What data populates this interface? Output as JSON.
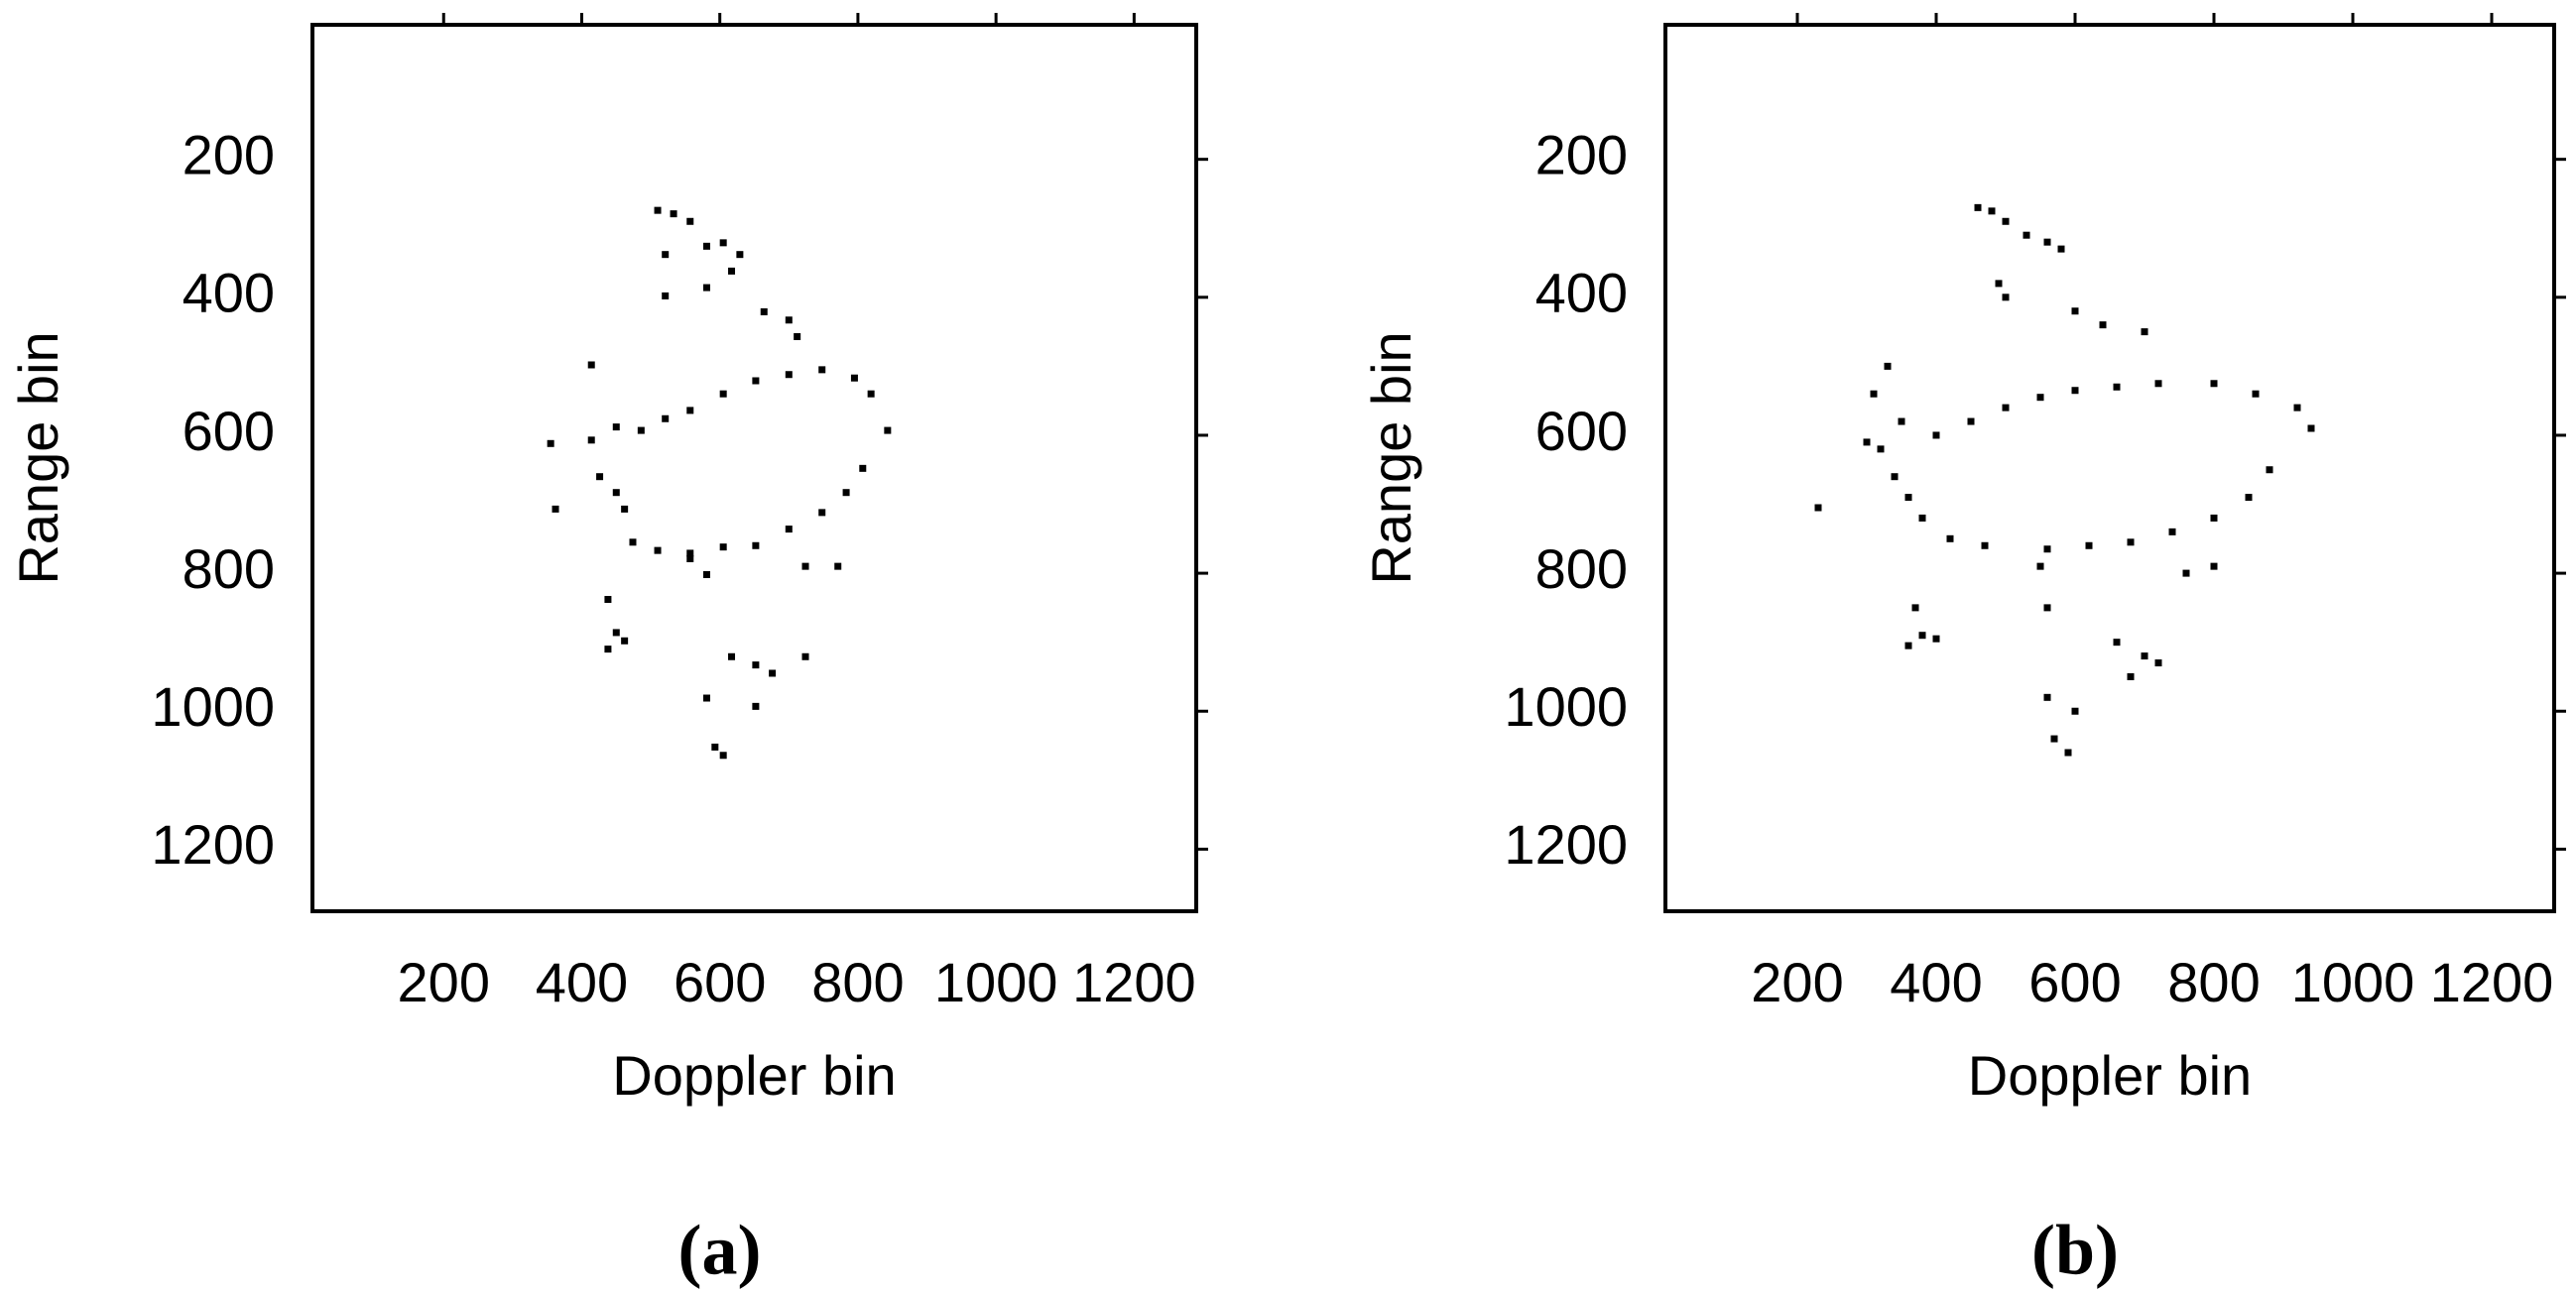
{
  "chart_data": [
    {
      "type": "scatter",
      "panel_label": "(a)",
      "x_label": "Doppler bin",
      "y_label": "Range bin",
      "xlim": [
        10,
        1290
      ],
      "ylim": [
        5,
        1290
      ],
      "y_reversed": true,
      "color": "#000000",
      "xticks": [
        200,
        400,
        600,
        800,
        1000,
        1200
      ],
      "yticks": [
        200,
        400,
        600,
        800,
        1000,
        1200
      ],
      "x": [
        510,
        533,
        557,
        581,
        605,
        629,
        617,
        521,
        521,
        581,
        664,
        700,
        712,
        414,
        450,
        486,
        521,
        557,
        605,
        652,
        700,
        748,
        795,
        819,
        843,
        355,
        414,
        426,
        450,
        462,
        362,
        474,
        510,
        557,
        605,
        652,
        700,
        748,
        783,
        807,
        581,
        557,
        724,
        771,
        438,
        450,
        438,
        462,
        617,
        652,
        676,
        724,
        581,
        652,
        593,
        605
      ],
      "y": [
        274,
        279,
        290,
        326,
        321,
        338,
        362,
        338,
        398,
        386,
        421,
        433,
        457,
        498,
        588,
        593,
        576,
        564,
        540,
        521,
        512,
        505,
        517,
        540,
        593,
        612,
        607,
        660,
        683,
        707,
        707,
        755,
        767,
        771,
        762,
        760,
        736,
        712,
        683,
        648,
        802,
        779,
        790,
        790,
        838,
        886,
        910,
        898,
        921,
        933,
        945,
        921,
        981,
        993,
        1052,
        1064
      ]
    },
    {
      "type": "scatter",
      "panel_label": "(b)",
      "x_label": "Doppler bin",
      "y_label": "Range bin",
      "xlim": [
        10,
        1290
      ],
      "ylim": [
        5,
        1290
      ],
      "y_reversed": true,
      "color": "#000000",
      "xticks": [
        200,
        400,
        600,
        800,
        1000,
        1200
      ],
      "yticks": [
        200,
        400,
        600,
        800,
        1000,
        1200
      ],
      "x": [
        460,
        480,
        500,
        530,
        560,
        580,
        500,
        490,
        600,
        640,
        700,
        330,
        310,
        350,
        400,
        450,
        500,
        550,
        600,
        660,
        720,
        800,
        860,
        920,
        940,
        300,
        320,
        340,
        360,
        380,
        230,
        420,
        470,
        560,
        620,
        680,
        740,
        800,
        850,
        880,
        550,
        560,
        760,
        800,
        370,
        380,
        360,
        400,
        660,
        700,
        720,
        680,
        560,
        600,
        570,
        590
      ],
      "y": [
        270,
        275,
        290,
        310,
        320,
        330,
        400,
        380,
        420,
        440,
        450,
        500,
        540,
        580,
        600,
        580,
        560,
        545,
        535,
        530,
        525,
        525,
        540,
        560,
        590,
        610,
        620,
        660,
        690,
        720,
        705,
        750,
        760,
        765,
        760,
        755,
        740,
        720,
        690,
        650,
        790,
        850,
        800,
        790,
        850,
        890,
        905,
        895,
        900,
        920,
        930,
        950,
        980,
        1000,
        1040,
        1060
      ]
    }
  ]
}
